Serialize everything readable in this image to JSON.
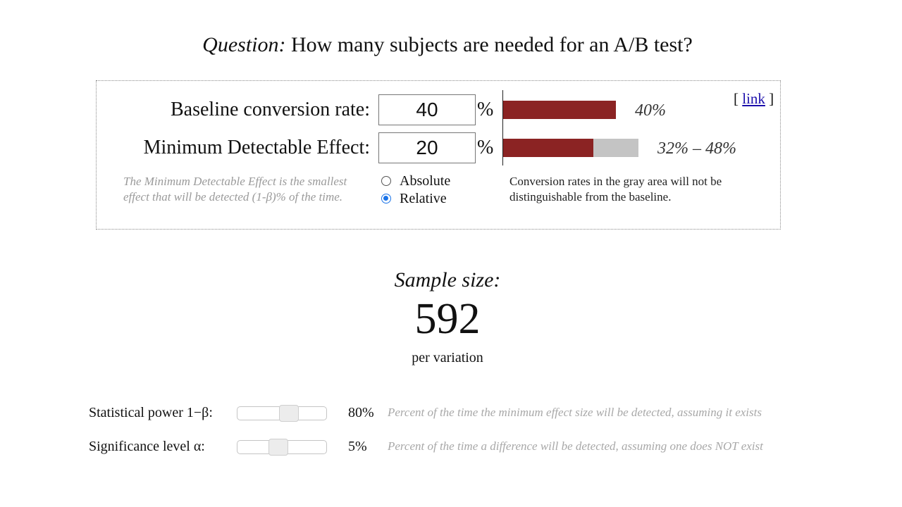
{
  "question": {
    "prefix": "Question:",
    "text": "How many subjects are needed for an A/B test?"
  },
  "panel": {
    "baseline": {
      "label": "Baseline conversion rate:",
      "value": "40",
      "unit": "%",
      "bar_label": "40%",
      "bar_fraction": 0.4
    },
    "mde": {
      "label": "Minimum Detectable Effect:",
      "value": "20",
      "unit": "%",
      "bar_label": "32% – 48%",
      "range_low_fraction": 0.32,
      "range_high_fraction": 0.48
    },
    "link_open": "[ ",
    "link_text": "link",
    "link_close": " ]",
    "mde_help": "The Minimum Detectable Effect is the smallest effect that will be detected (1-β)% of the time.",
    "mode_options": [
      {
        "label": "Absolute",
        "selected": false
      },
      {
        "label": "Relative",
        "selected": true
      }
    ],
    "gray_area_help": "Conversion rates in the gray area will not be distinguishable from the baseline."
  },
  "result": {
    "title": "Sample size:",
    "value": "592",
    "unit": "per variation"
  },
  "controls": {
    "power": {
      "label": "Statistical power 1−β:",
      "value": "80%",
      "slider_position": 0.57,
      "help": "Percent of the time the minimum effect size will be detected, assuming it exists"
    },
    "significance": {
      "label": "Significance level α:",
      "value": "5%",
      "slider_position": 0.45,
      "help": "Percent of the time a difference will be detected, assuming one does NOT exist"
    }
  },
  "colors": {
    "bar": "#8b2323",
    "gray_area": "#c4c4c4",
    "radio_selected": "#1a73e8",
    "help_text": "#9a9a9a"
  }
}
